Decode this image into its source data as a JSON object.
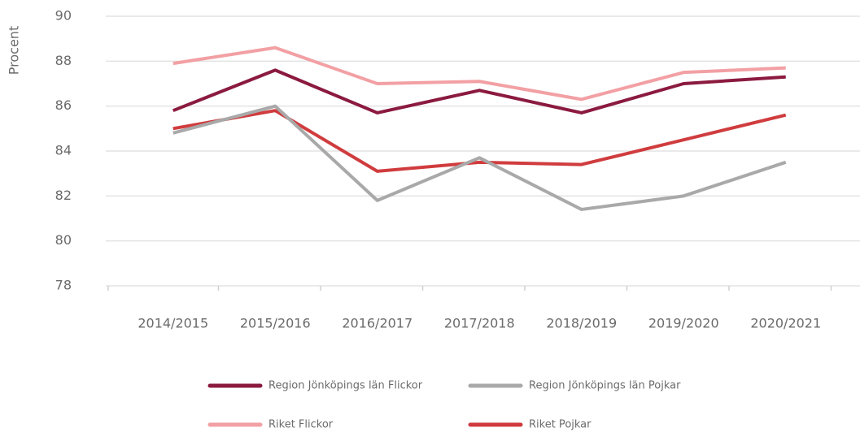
{
  "chart_data": {
    "type": "line",
    "y_label": "Procent",
    "categories": [
      "2014/2015",
      "2015/2016",
      "2016/2017",
      "2017/2018",
      "2018/2019",
      "2019/2020",
      "2020/2021"
    ],
    "series": [
      {
        "name": "Region Jönköpings län Flickor",
        "color": "#8b1a3f",
        "values": [
          85.8,
          87.6,
          85.7,
          86.7,
          85.7,
          87.0,
          87.3
        ]
      },
      {
        "name": "Region Jönköpings län Pojkar",
        "color": "#a9a9a9",
        "values": [
          84.8,
          86.0,
          81.8,
          83.7,
          81.4,
          82.0,
          83.5
        ]
      },
      {
        "name": "Riket Flickor",
        "color": "#f2a0a4",
        "values": [
          87.9,
          88.6,
          87.0,
          87.1,
          86.3,
          87.5,
          87.7
        ]
      },
      {
        "name": "Riket Pojkar",
        "color": "#d03c3e",
        "values": [
          85.0,
          85.8,
          83.1,
          83.5,
          83.4,
          84.5,
          85.6
        ]
      }
    ],
    "ylim": [
      78,
      90
    ],
    "yticks": [
      78,
      80,
      82,
      84,
      86,
      88,
      90
    ],
    "grid": true
  }
}
